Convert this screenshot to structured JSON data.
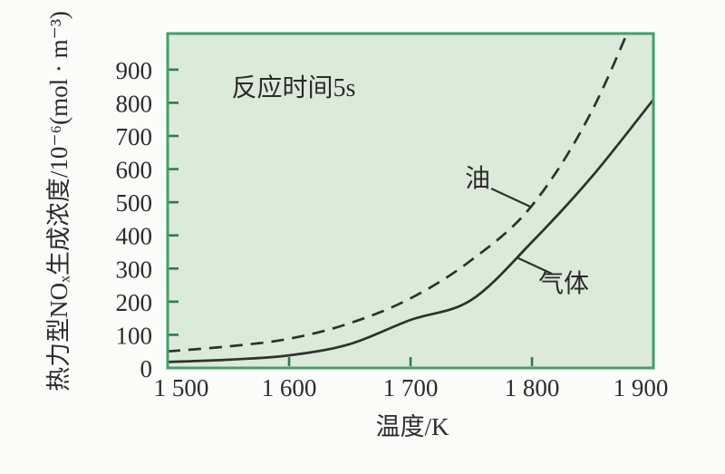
{
  "figure": {
    "background": "#fbfbf9"
  },
  "chart_data": {
    "type": "line",
    "annotation": "反应时间5s",
    "xlabel": "温度/K",
    "ylabel": "热力型NOₓ生成浓度/10⁻⁶(mol · m⁻³)",
    "xlim": [
      1500,
      1900
    ],
    "ylim": [
      0,
      1009
    ],
    "grid": false,
    "legend_position": "inline labels with leader lines",
    "x_ticks": [
      {
        "value": 1500,
        "label": "1 500"
      },
      {
        "value": 1600,
        "label": "1 600"
      },
      {
        "value": 1700,
        "label": "1 700"
      },
      {
        "value": 1800,
        "label": "1 800"
      },
      {
        "value": 1900,
        "label": "1 900"
      }
    ],
    "y_ticks": [
      {
        "value": 0,
        "label": "0"
      },
      {
        "value": 100,
        "label": "100"
      },
      {
        "value": 200,
        "label": "200"
      },
      {
        "value": 300,
        "label": "300"
      },
      {
        "value": 400,
        "label": "400"
      },
      {
        "value": 500,
        "label": "500"
      },
      {
        "value": 600,
        "label": "600"
      },
      {
        "value": 700,
        "label": "700"
      },
      {
        "value": 800,
        "label": "800"
      },
      {
        "value": 900,
        "label": "900"
      }
    ],
    "x": [
      1500,
      1550,
      1600,
      1650,
      1700,
      1750,
      1800,
      1850,
      1900
    ],
    "series": [
      {
        "name": "气体",
        "line_style": "solid",
        "values": [
          18,
          25,
          38,
          72,
          145,
          205,
          380,
          580,
          810
        ]
      },
      {
        "name": "油",
        "line_style": "dashed",
        "values": [
          50,
          65,
          88,
          135,
          210,
          325,
          490,
          780,
          1200
        ]
      }
    ],
    "colors": {
      "plot_background": "#dcead9",
      "frame": "#42a06c",
      "tick": "#2f7a55",
      "curve": "#2c332d",
      "text": "#2b2b2b"
    }
  }
}
